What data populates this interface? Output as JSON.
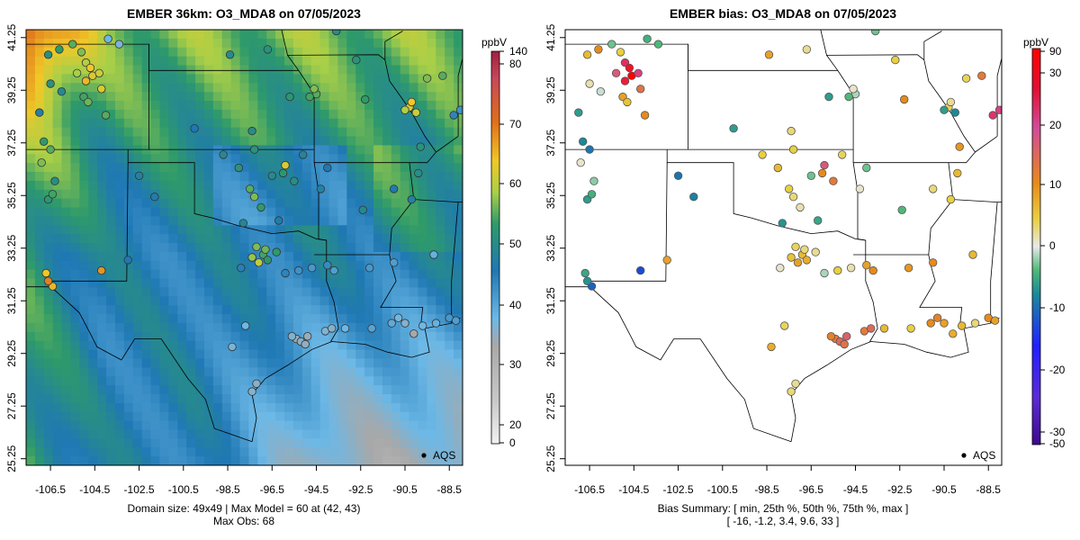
{
  "left_panel": {
    "title": "EMBER 36km: O3_MDA8 on 07/05/2023",
    "legend_label": "AQS",
    "colorbar_unit": "ppbV",
    "colorbar_ticks": [
      "0",
      "20",
      "30",
      "40",
      "50",
      "60",
      "70",
      "80",
      "140"
    ],
    "caption_line1": "Domain size: 49x49 | Max Model = 60 at (42, 43)",
    "caption_line2": "Max Obs: 68"
  },
  "right_panel": {
    "title": "EMBER bias: O3_MDA8 on 07/05/2023",
    "legend_label": "AQS",
    "colorbar_unit": "ppbV",
    "colorbar_ticks": [
      "-50",
      "-30",
      "-20",
      "-10",
      "0",
      "10",
      "20",
      "30",
      "90"
    ],
    "caption_line1": "Bias Summary: [ min, 25th %, 50th %, 75th %, max ]",
    "caption_line2": "[ -16,   -1.2,   3.4,   9.6,   33 ]"
  },
  "axes": {
    "x_ticks": [
      "-106.5",
      "-104.5",
      "-102.5",
      "-100.5",
      "-98.5",
      "-96.5",
      "-94.5",
      "-92.5",
      "-90.5",
      "-88.5"
    ],
    "y_ticks": [
      "25.25",
      "27.25",
      "29.25",
      "31.25",
      "33.25",
      "35.25",
      "37.25",
      "39.25",
      "41.25"
    ]
  },
  "colors": {
    "conc_stops": [
      "#f2f2f2",
      "#a8a8a8",
      "#6cb8e6",
      "#1f78b4",
      "#2e9a6a",
      "#a8cf48",
      "#f0c828",
      "#e06f1a",
      "#c8485a",
      "#a02040"
    ],
    "bias_stops": [
      "#3d0a8a",
      "#5b2ad6",
      "#2020ff",
      "#1a8a9a",
      "#4fb878",
      "#e8e8e8",
      "#e8d040",
      "#e88a1a",
      "#d24a9a",
      "#ff0000"
    ]
  },
  "sites": [
    {
      "lon": -106.6,
      "lat": 40.6,
      "c": 45,
      "b": 8
    },
    {
      "lon": -106.1,
      "lat": 40.8,
      "c": 48,
      "b": 12
    },
    {
      "lon": -105.5,
      "lat": 41.0,
      "c": 50,
      "b": -4
    },
    {
      "lon": -105.1,
      "lat": 40.7,
      "c": 52,
      "b": 6
    },
    {
      "lon": -104.9,
      "lat": 40.3,
      "c": 55,
      "b": 25
    },
    {
      "lon": -104.7,
      "lat": 40.1,
      "c": 60,
      "b": 30
    },
    {
      "lon": -104.6,
      "lat": 39.8,
      "c": 58,
      "b": 33
    },
    {
      "lon": -104.9,
      "lat": 39.6,
      "c": 62,
      "b": 28
    },
    {
      "lon": -104.3,
      "lat": 39.9,
      "c": 57,
      "b": 22
    },
    {
      "lon": -105.3,
      "lat": 39.9,
      "c": 54,
      "b": 18
    },
    {
      "lon": -106.5,
      "lat": 39.5,
      "c": 46,
      "b": 2
    },
    {
      "lon": -106.0,
      "lat": 39.2,
      "c": 44,
      "b": -1
    },
    {
      "lon": -105.0,
      "lat": 39.0,
      "c": 49,
      "b": 10
    },
    {
      "lon": -104.8,
      "lat": 38.8,
      "c": 51,
      "b": 7
    },
    {
      "lon": -104.0,
      "lat": 38.3,
      "c": 50,
      "b": 12
    },
    {
      "lon": -104.2,
      "lat": 39.3,
      "c": 58,
      "b": 15
    },
    {
      "lon": -103.9,
      "lat": 41.2,
      "c": 30,
      "b": -6
    },
    {
      "lon": -103.4,
      "lat": 41.0,
      "c": 28,
      "b": -5
    },
    {
      "lon": -107.0,
      "lat": 38.4,
      "c": 42,
      "b": -8
    },
    {
      "lon": -106.8,
      "lat": 37.3,
      "c": 48,
      "b": -10
    },
    {
      "lon": -106.5,
      "lat": 37.0,
      "c": 50,
      "b": -12
    },
    {
      "lon": -106.9,
      "lat": 36.5,
      "c": 52,
      "b": 1
    },
    {
      "lon": -106.3,
      "lat": 35.8,
      "c": 45,
      "b": -3
    },
    {
      "lon": -106.6,
      "lat": 35.1,
      "c": 47,
      "b": -8
    },
    {
      "lon": -106.4,
      "lat": 35.3,
      "c": 49,
      "b": -6
    },
    {
      "lon": -106.7,
      "lat": 32.3,
      "c": 60,
      "b": -7
    },
    {
      "lon": -106.4,
      "lat": 31.8,
      "c": 62,
      "b": -14
    },
    {
      "lon": -106.6,
      "lat": 32.0,
      "c": 68,
      "b": -9
    },
    {
      "lon": -104.2,
      "lat": 32.4,
      "c": 66,
      "b": -16
    },
    {
      "lon": -103.0,
      "lat": 32.8,
      "c": 40,
      "b": 10
    },
    {
      "lon": -102.5,
      "lat": 36.0,
      "c": 42,
      "b": -12
    },
    {
      "lon": -101.8,
      "lat": 35.2,
      "c": 41,
      "b": -11
    },
    {
      "lon": -100.0,
      "lat": 37.8,
      "c": 40,
      "b": -8
    },
    {
      "lon": -98.7,
      "lat": 36.8,
      "c": 44,
      "b": 6
    },
    {
      "lon": -98.0,
      "lat": 36.3,
      "c": 46,
      "b": 8
    },
    {
      "lon": -97.5,
      "lat": 35.5,
      "c": 50,
      "b": 6
    },
    {
      "lon": -97.3,
      "lat": 35.2,
      "c": 52,
      "b": 4
    },
    {
      "lon": -97.0,
      "lat": 34.8,
      "c": 48,
      "b": 2
    },
    {
      "lon": -96.5,
      "lat": 36.0,
      "c": 44,
      "b": -4
    },
    {
      "lon": -96.0,
      "lat": 36.1,
      "c": 47,
      "b": 12
    },
    {
      "lon": -95.9,
      "lat": 36.4,
      "c": 58,
      "b": 18
    },
    {
      "lon": -95.5,
      "lat": 35.8,
      "c": 45,
      "b": 14
    },
    {
      "lon": -95.1,
      "lat": 36.8,
      "c": 43,
      "b": 5
    },
    {
      "lon": -94.3,
      "lat": 35.5,
      "c": 42,
      "b": 1
    },
    {
      "lon": -94.0,
      "lat": 36.3,
      "c": 40,
      "b": -4
    },
    {
      "lon": -96.2,
      "lat": 34.3,
      "c": 41,
      "b": -7
    },
    {
      "lon": -97.8,
      "lat": 34.2,
      "c": 43,
      "b": -9
    },
    {
      "lon": -97.2,
      "lat": 33.3,
      "c": 52,
      "b": 5
    },
    {
      "lon": -96.9,
      "lat": 33.0,
      "c": 49,
      "b": 8
    },
    {
      "lon": -96.7,
      "lat": 32.8,
      "c": 47,
      "b": 9
    },
    {
      "lon": -97.1,
      "lat": 32.7,
      "c": 56,
      "b": 10
    },
    {
      "lon": -96.8,
      "lat": 33.2,
      "c": 51,
      "b": 4
    },
    {
      "lon": -97.4,
      "lat": 32.9,
      "c": 53,
      "b": 7
    },
    {
      "lon": -96.3,
      "lat": 33.1,
      "c": 48,
      "b": 3
    },
    {
      "lon": -95.9,
      "lat": 32.3,
      "c": 38,
      "b": -2
    },
    {
      "lon": -97.9,
      "lat": 32.5,
      "c": 39,
      "b": 1
    },
    {
      "lon": -95.3,
      "lat": 32.4,
      "c": 36,
      "b": 6
    },
    {
      "lon": -94.7,
      "lat": 32.5,
      "c": 35,
      "b": 2
    },
    {
      "lon": -94.0,
      "lat": 32.6,
      "c": 37,
      "b": 10
    },
    {
      "lon": -93.7,
      "lat": 32.4,
      "c": 34,
      "b": 12
    },
    {
      "lon": -92.1,
      "lat": 32.5,
      "c": 35,
      "b": 11
    },
    {
      "lon": -91.0,
      "lat": 32.7,
      "c": 34,
      "b": 12
    },
    {
      "lon": -89.2,
      "lat": 33.0,
      "c": 31,
      "b": 8
    },
    {
      "lon": -98.3,
      "lat": 29.5,
      "c": 28,
      "b": 9
    },
    {
      "lon": -97.7,
      "lat": 30.3,
      "c": 30,
      "b": 5
    },
    {
      "lon": -97.4,
      "lat": 27.8,
      "c": 27,
      "b": 4
    },
    {
      "lon": -97.2,
      "lat": 28.1,
      "c": 26,
      "b": 3
    },
    {
      "lon": -95.4,
      "lat": 29.8,
      "c": 24,
      "b": 14
    },
    {
      "lon": -95.2,
      "lat": 29.7,
      "c": 26,
      "b": 16
    },
    {
      "lon": -95.0,
      "lat": 29.6,
      "c": 25,
      "b": 15
    },
    {
      "lon": -94.9,
      "lat": 29.9,
      "c": 24,
      "b": 17
    },
    {
      "lon": -95.6,
      "lat": 29.9,
      "c": 27,
      "b": 13
    },
    {
      "lon": -94.1,
      "lat": 30.1,
      "c": 28,
      "b": 14
    },
    {
      "lon": -93.8,
      "lat": 30.2,
      "c": 26,
      "b": 16
    },
    {
      "lon": -93.2,
      "lat": 30.2,
      "c": 30,
      "b": 8
    },
    {
      "lon": -92.0,
      "lat": 30.2,
      "c": 33,
      "b": 6
    },
    {
      "lon": -91.1,
      "lat": 30.4,
      "c": 32,
      "b": 12
    },
    {
      "lon": -90.8,
      "lat": 30.6,
      "c": 29,
      "b": 13
    },
    {
      "lon": -90.5,
      "lat": 30.4,
      "c": 27,
      "b": 10
    },
    {
      "lon": -90.1,
      "lat": 30.0,
      "c": 22,
      "b": 9
    },
    {
      "lon": -89.7,
      "lat": 30.3,
      "c": 30,
      "b": 8
    },
    {
      "lon": -89.1,
      "lat": 30.4,
      "c": 31,
      "b": 4
    },
    {
      "lon": -88.5,
      "lat": 30.6,
      "c": 35,
      "b": 12
    },
    {
      "lon": -88.2,
      "lat": 30.5,
      "c": 34,
      "b": 10
    },
    {
      "lon": -92.4,
      "lat": 34.7,
      "c": 44,
      "b": -5
    },
    {
      "lon": -90.2,
      "lat": 35.1,
      "c": 42,
      "b": 6
    },
    {
      "lon": -91.0,
      "lat": 35.5,
      "c": 40,
      "b": 4
    },
    {
      "lon": -89.9,
      "lat": 36.1,
      "c": 45,
      "b": 8
    },
    {
      "lon": -89.8,
      "lat": 37.1,
      "c": 46,
      "b": 11
    },
    {
      "lon": -90.3,
      "lat": 38.6,
      "c": 58,
      "b": 5
    },
    {
      "lon": -90.2,
      "lat": 38.8,
      "c": 60,
      "b": 3
    },
    {
      "lon": -90.5,
      "lat": 38.5,
      "c": 55,
      "b": -8
    },
    {
      "lon": -90.0,
      "lat": 38.4,
      "c": 57,
      "b": -10
    },
    {
      "lon": -89.5,
      "lat": 39.7,
      "c": 52,
      "b": 5
    },
    {
      "lon": -88.8,
      "lat": 39.8,
      "c": 50,
      "b": 14
    },
    {
      "lon": -88.3,
      "lat": 38.3,
      "c": 38,
      "b": 24
    },
    {
      "lon": -88.0,
      "lat": 38.5,
      "c": 36,
      "b": 22
    },
    {
      "lon": -92.3,
      "lat": 38.9,
      "c": 48,
      "b": 12
    },
    {
      "lon": -92.7,
      "lat": 40.4,
      "c": 46,
      "b": 6
    },
    {
      "lon": -93.6,
      "lat": 41.5,
      "c": 45,
      "b": -4
    },
    {
      "lon": -94.5,
      "lat": 39.1,
      "c": 50,
      "b": -2
    },
    {
      "lon": -94.6,
      "lat": 39.3,
      "c": 52,
      "b": 1
    },
    {
      "lon": -94.8,
      "lat": 39.0,
      "c": 49,
      "b": -5
    },
    {
      "lon": -95.7,
      "lat": 39.0,
      "c": 47,
      "b": -8
    },
    {
      "lon": -96.7,
      "lat": 40.8,
      "c": 46,
      "b": 3
    },
    {
      "lon": -98.4,
      "lat": 40.6,
      "c": 44,
      "b": 10
    },
    {
      "lon": -97.4,
      "lat": 37.7,
      "c": 45,
      "b": 4
    },
    {
      "lon": -97.3,
      "lat": 37.0,
      "c": 46,
      "b": 6
    }
  ]
}
